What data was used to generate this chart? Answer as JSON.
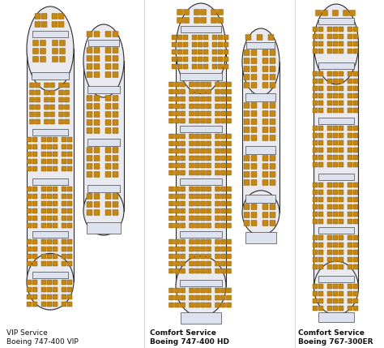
{
  "bg_color": "#ffffff",
  "fuselage_color": "#e8eaf0",
  "fuselage_border": "#2a2a2a",
  "seat_color": "#c8860a",
  "seat_border": "#7a5200",
  "service_color": "#dde3ee",
  "service_border": "#444444",
  "divider_color": "#bbbbbb",
  "label_color": "#111111",
  "planes": [
    {
      "label1": "VIP Service",
      "label2": "Boeing 747-400 VIP"
    },
    {
      "label1": "Comfort Service",
      "label2": "Boeing 747-400 HD"
    },
    {
      "label1": "Comfort Service",
      "label2": "Boeing 767-300ER"
    }
  ]
}
